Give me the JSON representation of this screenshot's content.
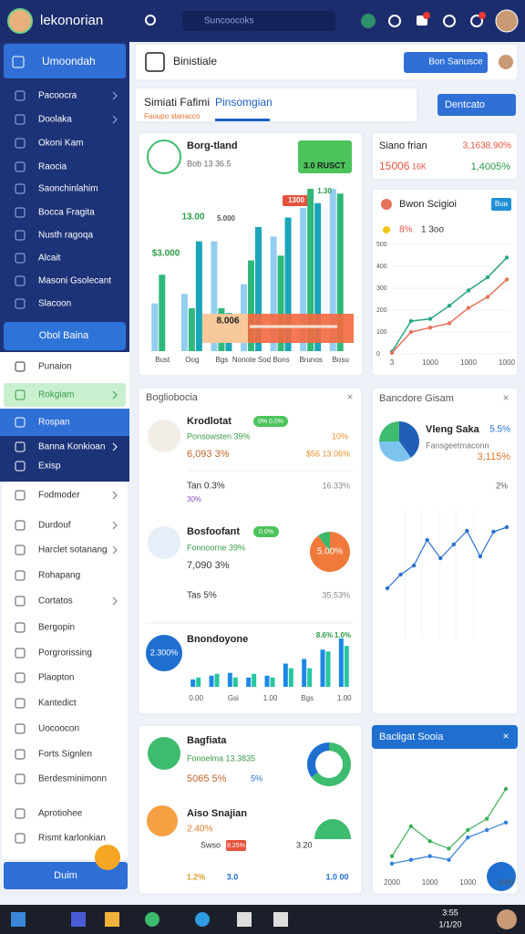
{
  "topbar": {
    "app_name": "lekonorian",
    "search": "Suncoocoks"
  },
  "sidebar": {
    "header": "Umoondah",
    "nav_dark": [
      "Pacoocra",
      "Doolaka",
      "Okoni Kam",
      "Raocia",
      "Saonchinlahim",
      "Bocca Fragita",
      "Nusth ragoqa",
      "Alcait",
      "Masoni Gsolecant",
      "Slacoon"
    ],
    "primary_button": "Obol Baina",
    "nav_light": [
      "Punaion",
      "Rokgiam",
      "Rospan",
      "Banna Konkioan",
      "Exisp"
    ],
    "nav_list": [
      "Fodmoder",
      "Durdouf",
      "Harclet sotanang",
      "Rohapang",
      "Cortatos",
      "Bergopin",
      "Porgrorissing",
      "Plaopton",
      "Kantedict",
      "Uocoocon",
      "Forts Signlen",
      "Berdesminimonn",
      "Aprotiohee",
      "Rismt karlonkian"
    ],
    "footer": "Duim"
  },
  "toolbar": {
    "title": "Binistiale",
    "button": "Bon Sanusce"
  },
  "tabs": {
    "items": [
      "Simiati Fafimi",
      "Pinsomgian"
    ],
    "caption": "Faoupo stanacco",
    "button": "Dentcato"
  },
  "revenue_card": {
    "title": "Borg-tland",
    "subtitle": "Bob 13 36.5",
    "badge": "3.0 RUSCT",
    "annotations": [
      "13.00",
      "$3.000",
      "1.30",
      "1300",
      "5.000"
    ],
    "tooltip": "8.006",
    "categories": [
      "Bust",
      "Oog",
      "Bgs",
      "Nonote Sod",
      "Bons",
      "Brunos",
      "Bosu"
    ],
    "series": [
      {
        "color": "#93cdf0",
        "values": [
          50,
          60,
          115,
          70,
          120,
          150,
          170
        ]
      },
      {
        "color": "#2fb87a",
        "values": [
          80,
          45,
          45,
          95,
          100,
          170,
          165
        ]
      },
      {
        "color": "#1aa5b8",
        "values": [
          0,
          115,
          40,
          130,
          140,
          155,
          0
        ]
      }
    ]
  },
  "stat_card": {
    "title": "Siano frian",
    "change": "3,1638.90%",
    "value": "15006",
    "unit": "16K",
    "delta": "1,4005%"
  },
  "trend_card": {
    "title": "Bwon Scigioi",
    "badge": "Bua",
    "legend": [
      "8%",
      "1 3oo"
    ],
    "categories": [
      "3",
      null,
      "1000",
      null,
      "1000",
      null,
      "1000"
    ],
    "ylim": [
      0,
      500
    ],
    "yticks": [
      0,
      100,
      200,
      300,
      400,
      500
    ],
    "series": [
      {
        "color": "#2aa586",
        "values": [
          10,
          150,
          160,
          220,
          290,
          350,
          440
        ]
      },
      {
        "color": "#e5735a",
        "values": [
          5,
          100,
          120,
          140,
          210,
          260,
          340
        ]
      }
    ]
  },
  "detail_card": {
    "title": "Bogliobocia",
    "rows": [
      {
        "name": "Krodlotat",
        "badge": "0% 0.0%",
        "caption": "Ponsowsten 39%",
        "change": "10%",
        "amount": "6,093 3%",
        "extra": "$56 13.06%",
        "note": "Tan 0.3%",
        "ratio": "16.33%",
        "footnote": "30%"
      },
      {
        "name": "Bosfoofant",
        "badge": "0.0%",
        "caption": "Fonnoorne 39%",
        "amount": "7,090 3%",
        "note": "Tas 5%",
        "ratio": "35.53%",
        "pie_label": "5.00%",
        "pie": [
          {
            "color": "#f07a3c",
            "value": 90
          },
          {
            "color": "#3db86a",
            "value": 10
          }
        ]
      },
      {
        "name": "Bnondoyone",
        "circle_label": "2.300%",
        "bar_labels": [
          "8.6%",
          "1.0%"
        ],
        "categories": [
          "0.00",
          null,
          "Gsi",
          null,
          "1.00",
          null,
          "Bgs",
          null,
          "1.00"
        ],
        "series": [
          {
            "color": "#1e88e5",
            "values": [
              8,
              12,
              15,
              10,
              12,
              25,
              30,
              40,
              52
            ]
          },
          {
            "color": "#26c6a0",
            "values": [
              10,
              14,
              10,
              14,
              10,
              20,
              20,
              38,
              44
            ]
          }
        ]
      }
    ]
  },
  "summary_card": {
    "title": "Bancdore Gisam",
    "heading": "Vleng Saka",
    "change": "5.5%",
    "caption": "Fansgeetmaconn",
    "value": "3,115%",
    "tick": "2%",
    "pie": [
      {
        "color": "#1f5fb5",
        "value": 40
      },
      {
        "color": "#7cc3ee",
        "value": 35
      },
      {
        "color": "#3dbb6e",
        "value": 25
      }
    ],
    "series": [
      {
        "color": "#2a6fd0",
        "values": [
          115,
          130,
          140,
          168,
          148,
          163,
          178,
          150,
          177,
          182
        ]
      }
    ]
  },
  "insight_card": {
    "rows": [
      {
        "title": "Bagfiata",
        "caption": "Fonoelma 13.3835",
        "amount": "5065 5%",
        "tag": "5%",
        "donut": [
          {
            "color": "#3dbb6e",
            "value": 65
          },
          {
            "color": "#1f6fd0",
            "value": 35
          }
        ]
      },
      {
        "title": "Aiso Snajian",
        "change": "2.40%",
        "badge": "8.25%",
        "note": "Swso",
        "legend": "3.20",
        "footer": [
          "1.2%",
          "3.0",
          "1.0 00"
        ]
      }
    ]
  },
  "compare_card": {
    "title": "Bacligat Sooia",
    "categories": [
      "2000",
      null,
      "1000",
      null,
      "1000",
      null,
      "1000"
    ],
    "series": [
      {
        "color": "#3fae5a",
        "values": [
          20,
          60,
          40,
          30,
          55,
          70,
          110
        ]
      },
      {
        "color": "#2f7fd8",
        "values": [
          10,
          15,
          20,
          15,
          45,
          55,
          65
        ]
      }
    ]
  },
  "taskbar": {
    "time": "3:55",
    "date": "1/1/20"
  }
}
